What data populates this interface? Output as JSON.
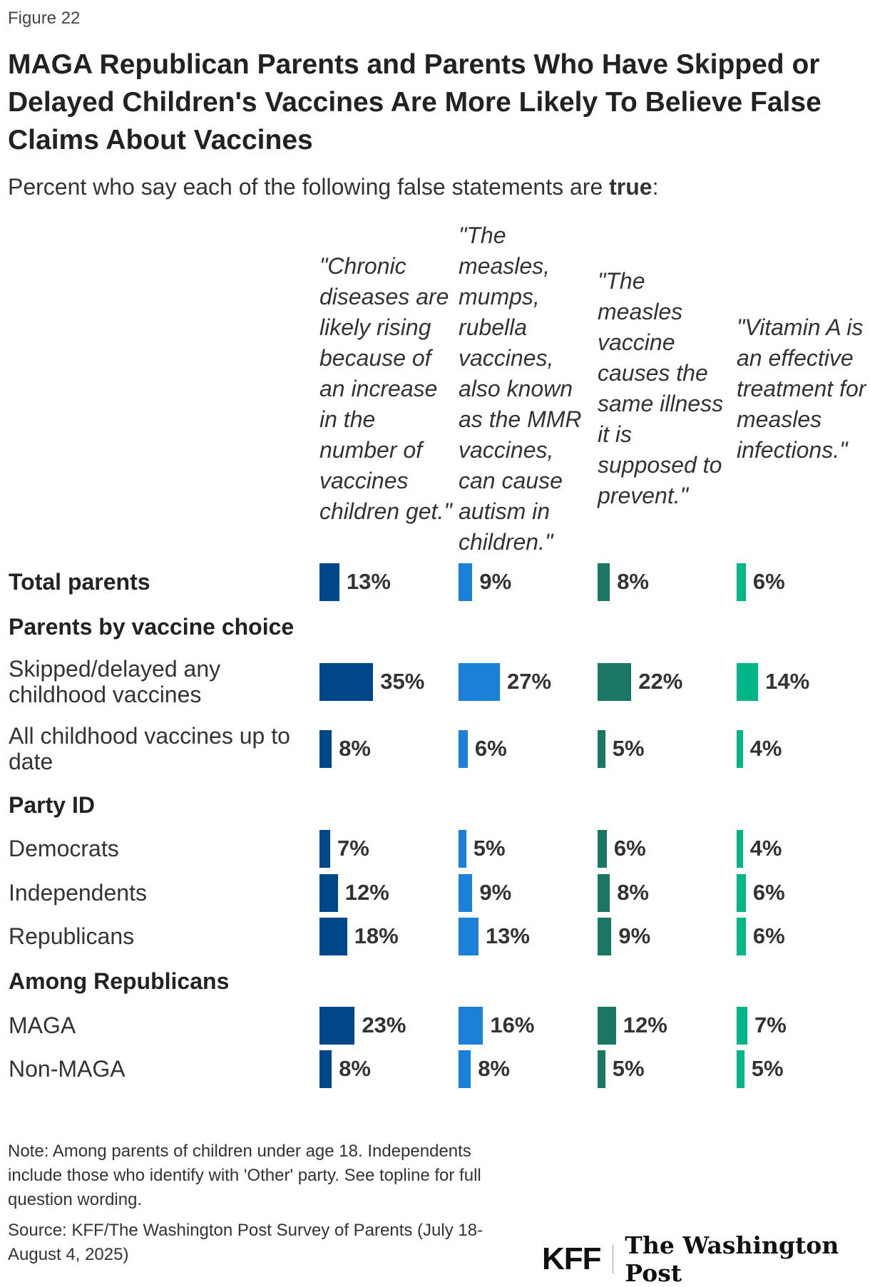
{
  "figure_label": "Figure 22",
  "chart_data": {
    "type": "bar",
    "orientation": "horizontal",
    "title": "MAGA Republican Parents and Parents Who Have Skipped or Delayed Children's Vaccines Are More Likely To Believe False Claims About Vaccines",
    "subtitle_prefix": "Percent who say each of the following false statements are ",
    "subtitle_bold": "true",
    "subtitle_suffix": ":",
    "series": [
      {
        "name": "\"Chronic diseases are likely rising because of an increase in the number of vaccines children get.\"",
        "color": "#00478a"
      },
      {
        "name": "\"The measles, mumps, rubella vaccines, also known as the MMR vaccines, can cause autism in children.\"",
        "color": "#1b80d7"
      },
      {
        "name": "\"The measles vaccine causes the same illness it is supposed to prevent.\"",
        "color": "#1b7663"
      },
      {
        "name": "\"Vitamin A is an effective treatment for measles infections.\"",
        "color": "#00b688"
      }
    ],
    "rows": [
      {
        "label": "Total parents",
        "header": true,
        "values": [
          13,
          9,
          8,
          6
        ],
        "labels": [
          "13%",
          "9%",
          "8%",
          "6%"
        ]
      },
      {
        "label": "Parents by vaccine choice",
        "header": true,
        "values": null
      },
      {
        "label": "Skipped/delayed any childhood vaccines",
        "header": false,
        "values": [
          35,
          27,
          22,
          14
        ],
        "labels": [
          "35%",
          "27%",
          "22%",
          "14%"
        ]
      },
      {
        "label": "All childhood vaccines up to date",
        "header": false,
        "values": [
          8,
          6,
          5,
          4
        ],
        "labels": [
          "8%",
          "6%",
          "5%",
          "4%"
        ]
      },
      {
        "label": "Party ID",
        "header": true,
        "values": null
      },
      {
        "label": "Democrats",
        "header": false,
        "values": [
          7,
          5,
          6,
          4
        ],
        "labels": [
          "7%",
          "5%",
          "6%",
          "4%"
        ]
      },
      {
        "label": "Independents",
        "header": false,
        "values": [
          12,
          9,
          8,
          6
        ],
        "labels": [
          "12%",
          "9%",
          "8%",
          "6%"
        ]
      },
      {
        "label": "Republicans",
        "header": false,
        "values": [
          18,
          13,
          9,
          6
        ],
        "labels": [
          "18%",
          "13%",
          "9%",
          "6%"
        ]
      },
      {
        "label": "Among Republicans",
        "header": true,
        "values": null
      },
      {
        "label": "MAGA",
        "header": false,
        "values": [
          23,
          16,
          12,
          7
        ],
        "labels": [
          "23%",
          "16%",
          "12%",
          "7%"
        ]
      },
      {
        "label": "Non-MAGA",
        "header": false,
        "values": [
          8,
          8,
          5,
          5
        ],
        "labels": [
          "8%",
          "8%",
          "5%",
          "5%"
        ]
      }
    ],
    "grid": false
  },
  "note": "Note: Among parents of children under age 18. Independents include those who identify with 'Other' party. See topline for full question wording.",
  "source": "Source: KFF/The Washington Post Survey of Parents (July 18-August 4, 2025)",
  "logos": {
    "kff": "KFF",
    "wapo": "The Washington Post"
  }
}
